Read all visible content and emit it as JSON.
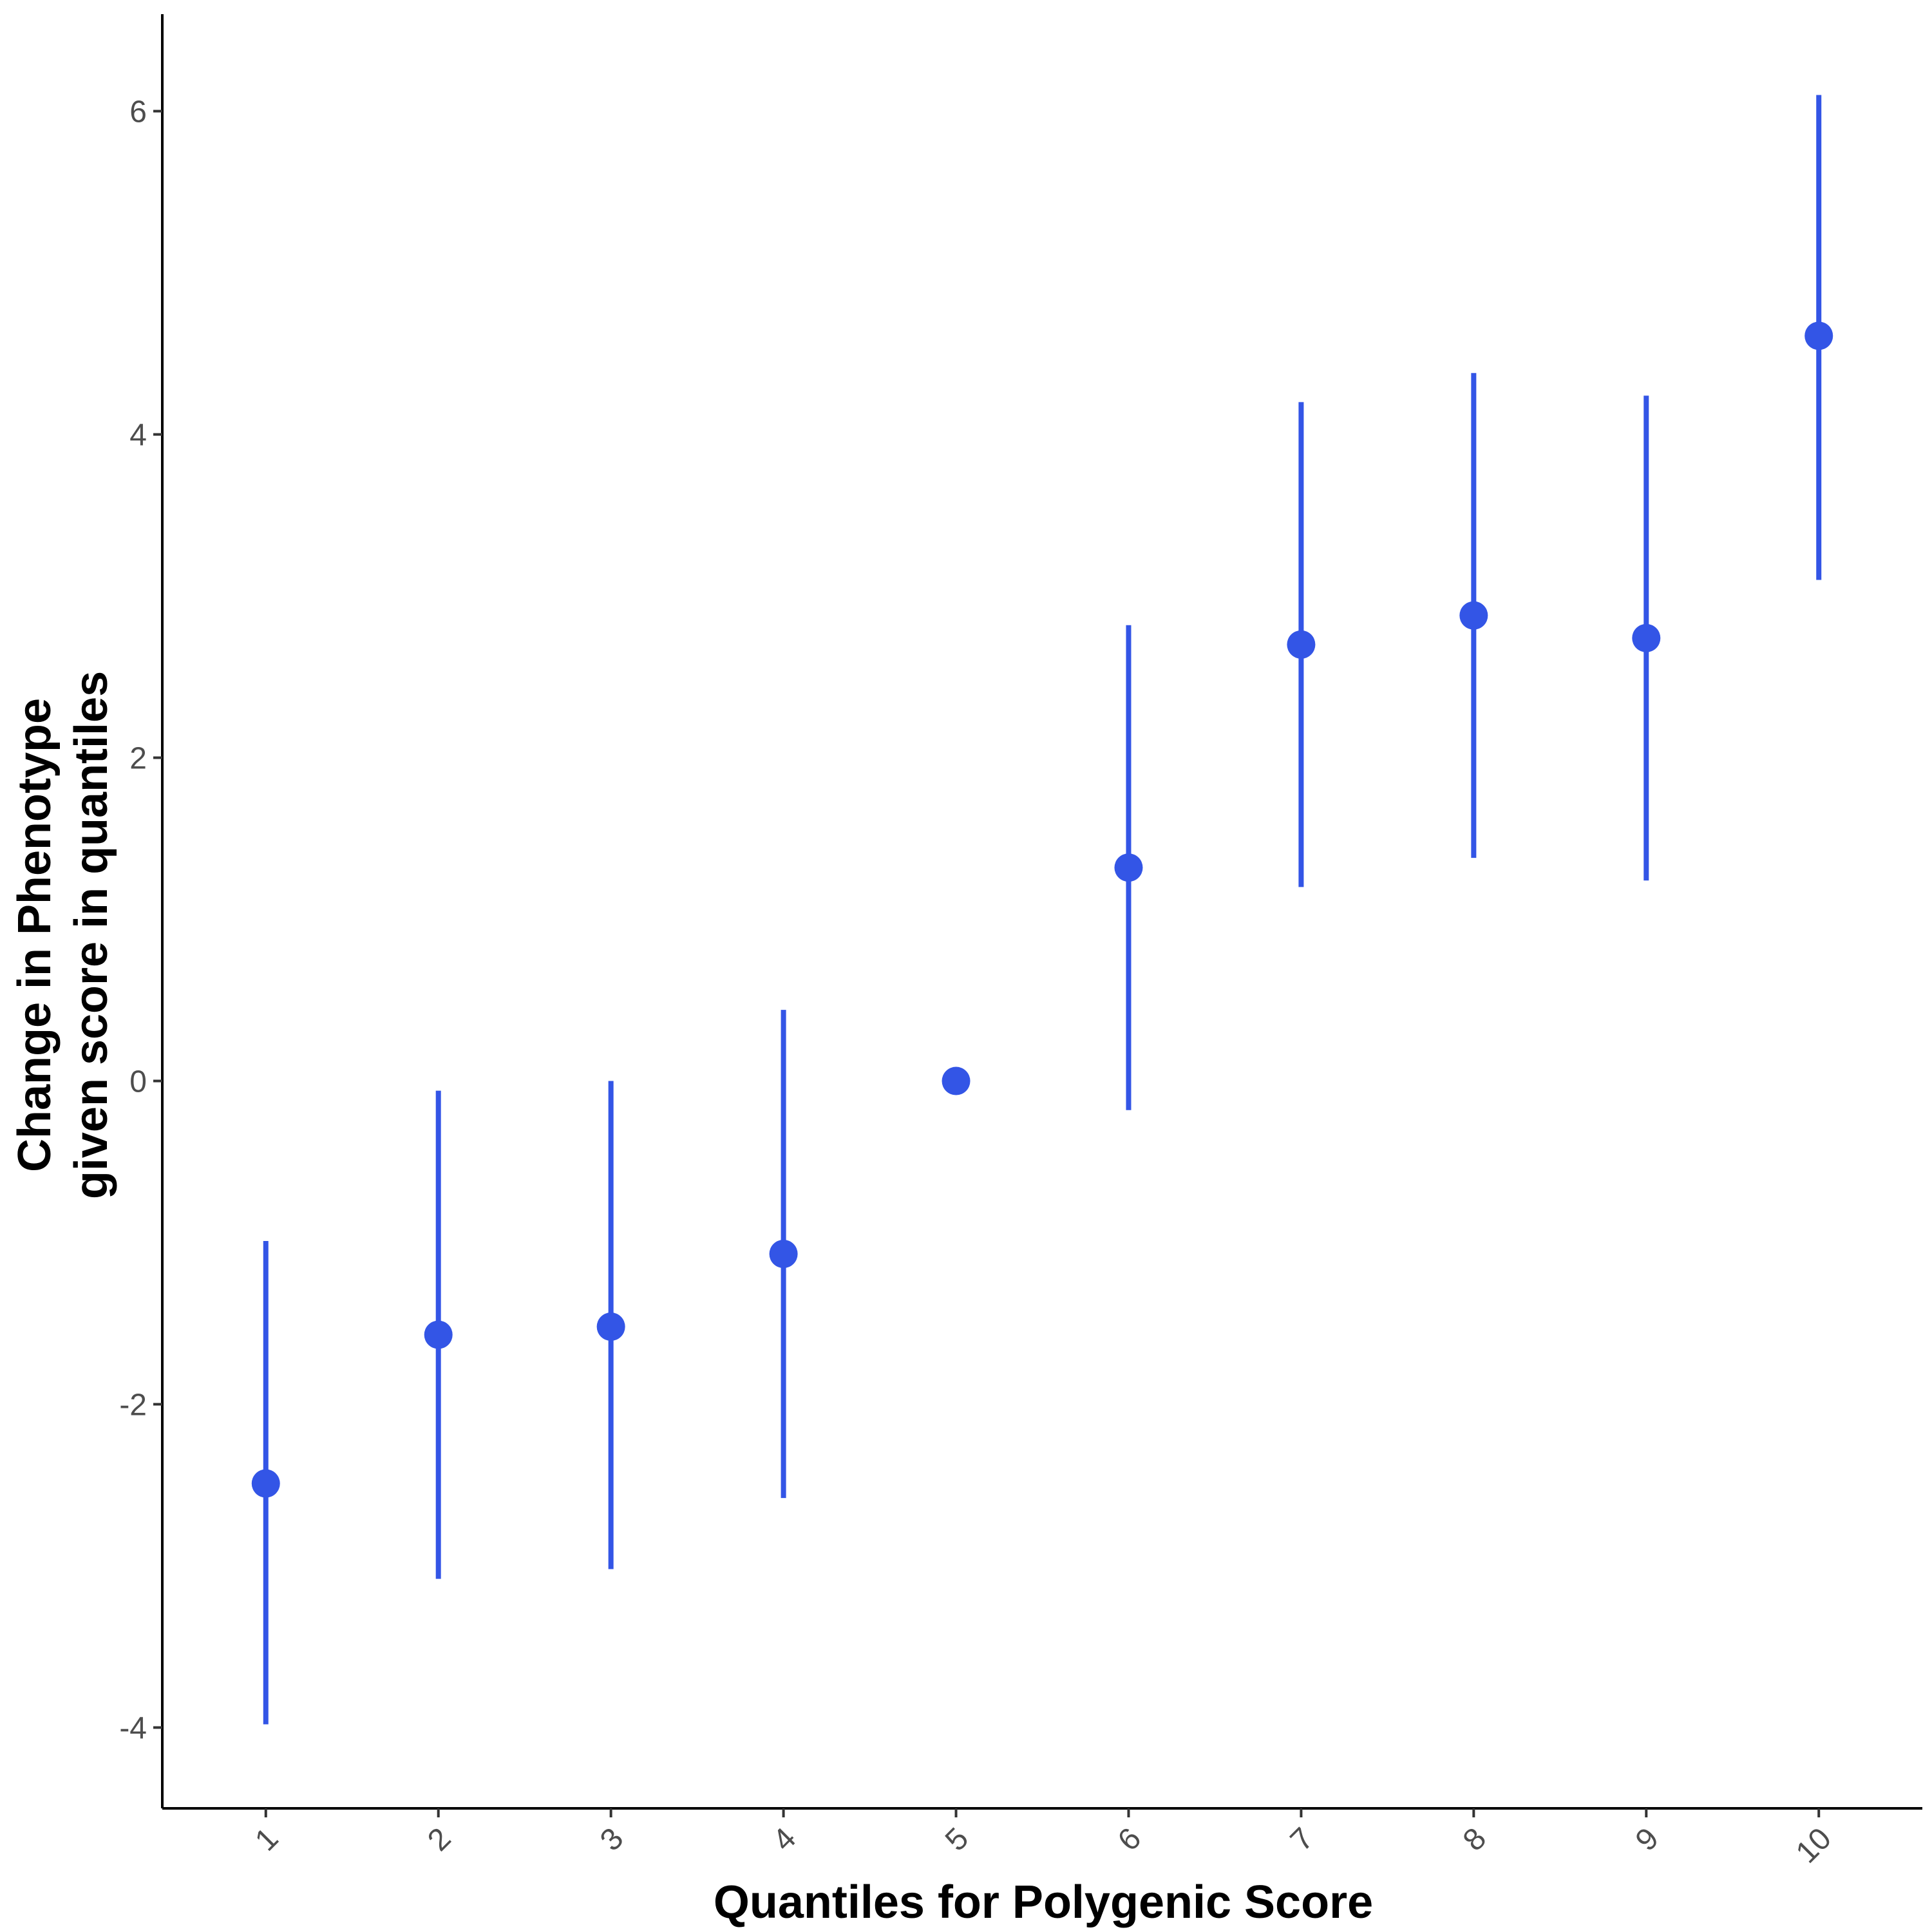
{
  "chart_data": {
    "type": "scatter",
    "title": "",
    "xlabel": "Quantiles for Polygenic Score",
    "ylabel_lines": [
      "Change in Phenotype",
      "given score in quantiles"
    ],
    "x_tick_labels": [
      "1",
      "2",
      "3",
      "4",
      "5",
      "6",
      "7",
      "8",
      "9",
      "10"
    ],
    "y_ticks": [
      -4,
      -2,
      0,
      2,
      4,
      6
    ],
    "y_tick_labels": [
      "-4",
      "-2",
      "0",
      "2",
      "4",
      "6"
    ],
    "xlim": [
      0.4,
      10.6
    ],
    "ylim": [
      -4.5,
      6.6
    ],
    "grid": false,
    "legend": "none",
    "color": "#3355e6",
    "series": [
      {
        "x": [
          1,
          2,
          3,
          4,
          5,
          6,
          7,
          8,
          9,
          10
        ],
        "y": [
          -2.49,
          -1.57,
          -1.52,
          -1.07,
          0.0,
          1.32,
          2.7,
          2.88,
          2.74,
          4.61
        ],
        "ci_lower": [
          -3.98,
          -3.08,
          -3.02,
          -2.58,
          null,
          -0.18,
          1.2,
          1.38,
          1.24,
          3.1
        ],
        "ci_upper": [
          -0.99,
          -0.06,
          0.0,
          0.44,
          null,
          2.82,
          4.2,
          4.38,
          4.24,
          6.1
        ]
      }
    ]
  }
}
